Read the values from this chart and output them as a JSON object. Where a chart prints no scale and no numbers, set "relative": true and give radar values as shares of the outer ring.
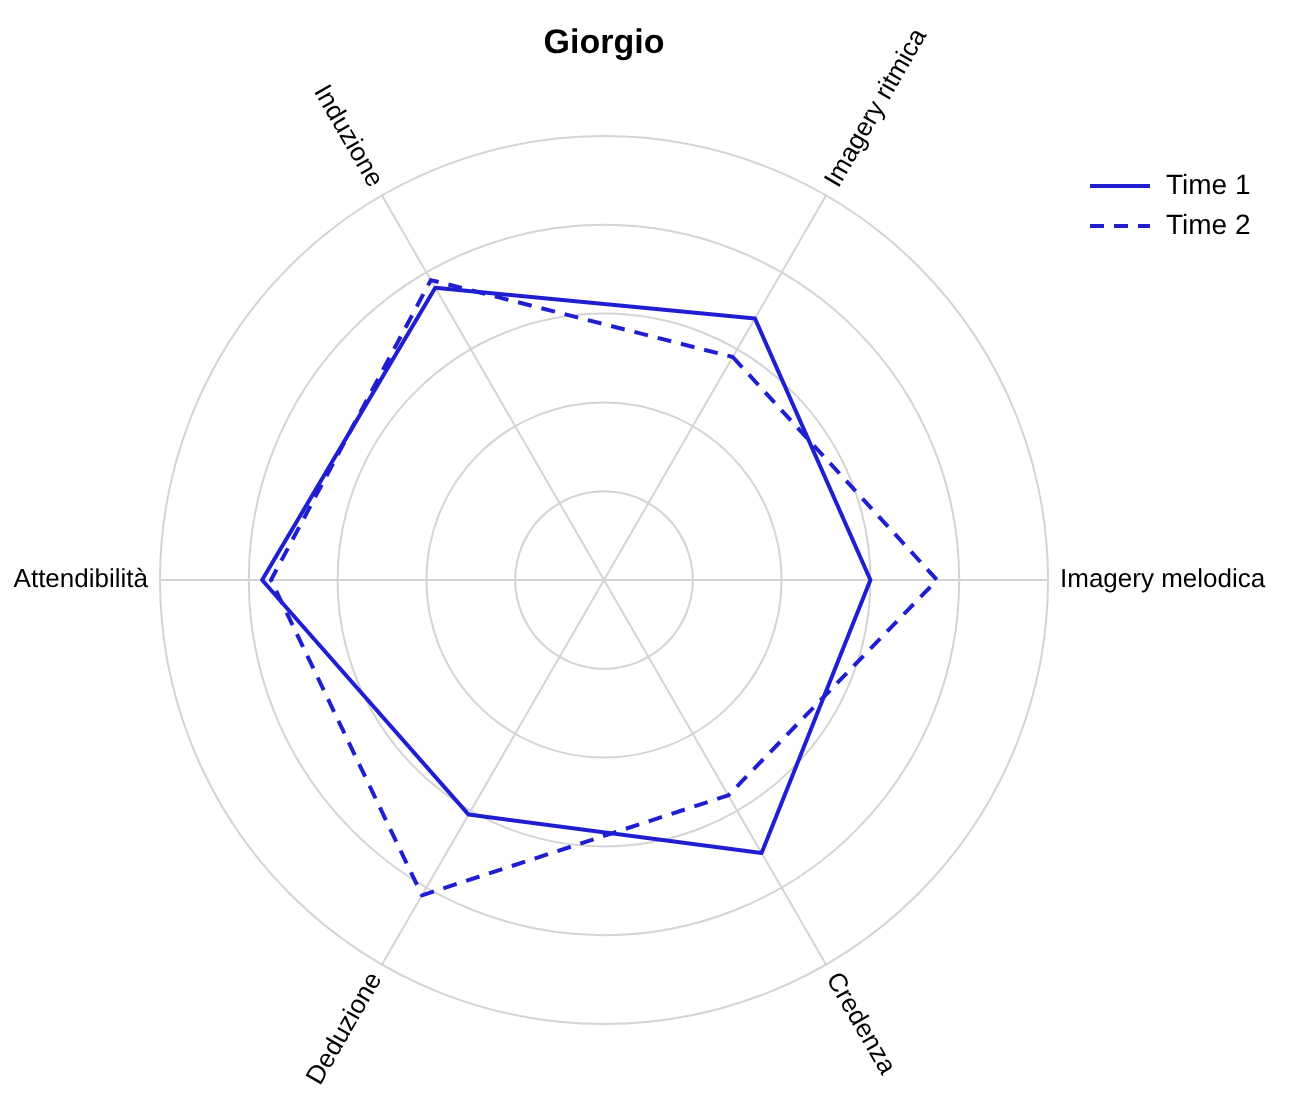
{
  "chart_data": {
    "type": "radar",
    "title": "Giorgio",
    "relative": true,
    "grid": true,
    "legend": "top right",
    "marker": "none",
    "categories": [
      "Imagery ritmica",
      "Imagery melodica",
      "Credenza",
      "Deduzione",
      "Attendibilità",
      "Induzione"
    ],
    "series": [
      {
        "name": "Time 1",
        "color": "#1f1fd1",
        "line_style": "solid",
        "values": [
          0.68,
          0.6,
          0.71,
          0.61,
          0.77,
          0.76
        ]
      },
      {
        "name": "Time 2",
        "color": "#1f1fd1",
        "line_style": "dashed",
        "values": [
          0.58,
          0.75,
          0.56,
          0.82,
          0.75,
          0.78
        ]
      }
    ]
  }
}
